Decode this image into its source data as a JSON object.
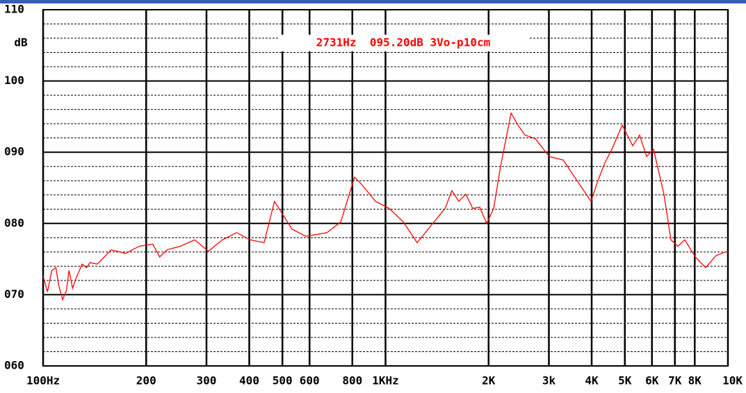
{
  "chart_data": {
    "type": "line",
    "y_axis_label": "dB",
    "annotation": "2731Hz  095.20dB 3Vo-p10cm",
    "x_scale": "log",
    "grid": true,
    "xlim": [
      100,
      10000
    ],
    "ylim": [
      60,
      110
    ],
    "xticks": [
      {
        "value": 100,
        "label": "100Hz"
      },
      200,
      300,
      400,
      500,
      600,
      800,
      {
        "value": 1000,
        "label": "1KHz"
      },
      {
        "value": 2000,
        "label": "2K"
      },
      {
        "value": 3000,
        "label": "3k"
      },
      {
        "value": 4000,
        "label": "4K"
      },
      {
        "value": 5000,
        "label": "5K"
      },
      {
        "value": 6000,
        "label": "6K"
      },
      {
        "value": 7000,
        "label": "7K"
      },
      {
        "value": 8000,
        "label": "8K"
      },
      {
        "value": 10000,
        "label": "10K"
      }
    ],
    "yticks": [
      {
        "value": 60,
        "label": "060"
      },
      {
        "value": 70,
        "label": "070"
      },
      {
        "value": 80,
        "label": "080"
      },
      {
        "value": 90,
        "label": "090"
      },
      100,
      110
    ],
    "series": [
      {
        "color": "#ff0000",
        "x": [
          100,
          103,
          106,
          109,
          111,
          114,
          117,
          119,
          122,
          125,
          130,
          134,
          137,
          144,
          151,
          158,
          174,
          191,
          209,
          219,
          230,
          252,
          277,
          304,
          334,
          367,
          403,
          442,
          474,
          533,
          586,
          674,
          740,
          812,
          851,
          935,
          1026,
          1127,
          1237,
          1358,
          1492,
          1563,
          1637,
          1716,
          1798,
          1884,
          1974,
          2069,
          2168,
          2326,
          2437,
          2554,
          2739,
          3007,
          3303,
          3626,
          3981,
          4172,
          4371,
          4580,
          4914,
          5272,
          5523,
          5788,
          6064,
          6505,
          6816,
          7141,
          7482,
          8028,
          8610,
          9238,
          10000
        ],
        "values": [
          72.6,
          70.4,
          73.4,
          73.8,
          71.4,
          69.3,
          70.6,
          73.4,
          70.9,
          72.4,
          74.3,
          73.8,
          74.5,
          74.3,
          75.3,
          76.3,
          75.8,
          76.8,
          77.1,
          75.3,
          76.3,
          76.8,
          77.7,
          76.1,
          77.7,
          78.7,
          77.7,
          77.3,
          83.1,
          79.2,
          78.2,
          78.7,
          80.2,
          86.5,
          85.5,
          83.1,
          82.1,
          80.2,
          77.3,
          79.7,
          82.1,
          84.6,
          83.1,
          84.1,
          82.1,
          82.3,
          80.0,
          82.1,
          88.0,
          95.5,
          93.8,
          92.4,
          91.9,
          89.4,
          88.9,
          86.0,
          83.1,
          86.0,
          88.5,
          90.4,
          93.8,
          90.9,
          92.4,
          89.4,
          90.4,
          84.1,
          77.7,
          76.8,
          77.7,
          75.3,
          73.8,
          75.5,
          76.1
        ]
      }
    ]
  }
}
